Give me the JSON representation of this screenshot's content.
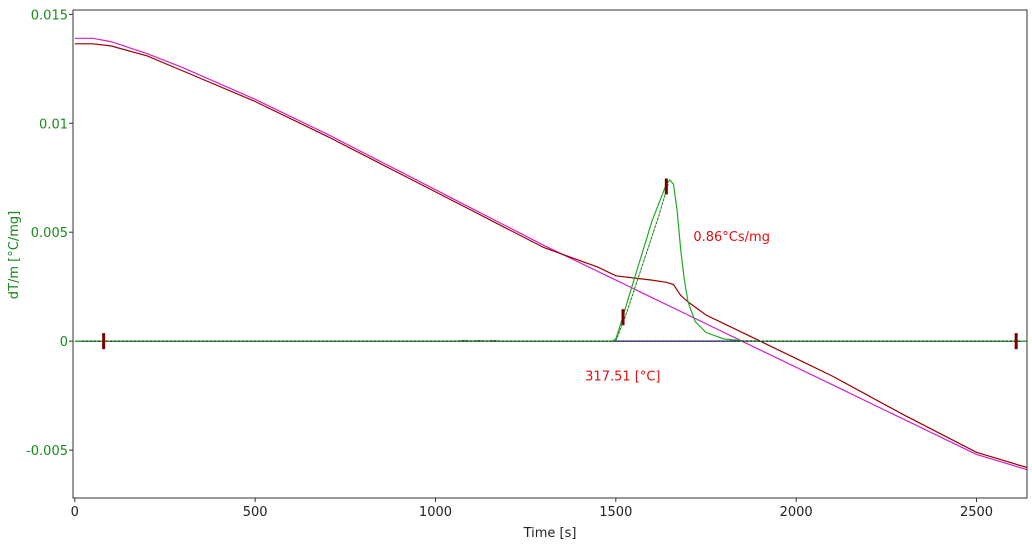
{
  "chart_data": {
    "type": "line",
    "xlabel": "Time [s]",
    "ylabel": "dT/m  [°C/mg]",
    "xlim": [
      -5,
      2640
    ],
    "ylim": [
      -0.0072,
      0.0152
    ],
    "xticks": [
      0,
      500,
      1000,
      1500,
      2000,
      2500
    ],
    "xtick_labels": [
      "0",
      "500",
      "1000",
      "1500",
      "2000",
      "2500"
    ],
    "yticks": [
      0.015,
      0.01,
      0.005,
      0,
      -0.005
    ],
    "ytick_labels": [
      "0.015",
      "0.01",
      "0.005",
      "0",
      "-0.005"
    ],
    "grid": false,
    "legend": "none",
    "colors": {
      "magenta_curve": "#d020d0",
      "darkred_curve": "#9a0000",
      "green_curve": "#22aa22",
      "baseline": "#1a1a8c",
      "dashed_overlay": "#1a1a1a",
      "markers": "#7a0000",
      "axis_text": "#1a8a1a",
      "annotation": "#e01010"
    },
    "series": [
      {
        "x": [
          0,
          50,
          100,
          200,
          300,
          500,
          700,
          900,
          1100,
          1300,
          1500,
          1600,
          1700,
          1900,
          2100,
          2300,
          2500,
          2640
        ],
        "y": [
          0.0139,
          0.0139,
          0.01375,
          0.0132,
          0.01255,
          0.0111,
          0.0095,
          0.0078,
          0.0061,
          0.0044,
          0.0028,
          0.002,
          0.0012,
          -0.0004,
          -0.002,
          -0.0036,
          -0.0052,
          -0.0059
        ]
      },
      {
        "x": [
          0,
          50,
          100,
          200,
          300,
          500,
          700,
          900,
          1100,
          1300,
          1450,
          1500,
          1550,
          1600,
          1640,
          1660,
          1680,
          1700,
          1750,
          1800,
          1900,
          2000,
          2100,
          2300,
          2500,
          2640
        ],
        "y": [
          0.01365,
          0.01365,
          0.01355,
          0.0131,
          0.0124,
          0.011,
          0.0094,
          0.0077,
          0.006,
          0.0043,
          0.0034,
          0.003,
          0.0029,
          0.0028,
          0.0027,
          0.0026,
          0.0021,
          0.0018,
          0.0012,
          0.0008,
          0,
          -0.0008,
          -0.0016,
          -0.0034,
          -0.0051,
          -0.0058
        ]
      },
      {
        "x": [
          0,
          1060,
          1080,
          1100,
          1120,
          1140,
          1160,
          1180,
          1200,
          1490,
          1500,
          1510,
          1550,
          1600,
          1640,
          1650,
          1660,
          1670,
          1680,
          1690,
          1700,
          1720,
          1750,
          1800,
          1850,
          1900,
          2270,
          2640
        ],
        "y": [
          0,
          0,
          4e-05,
          0,
          3e-05,
          0,
          3e-05,
          0,
          0,
          0,
          0.0001,
          0.0006,
          0.0028,
          0.0055,
          0.0072,
          0.0074,
          0.0072,
          0.006,
          0.0042,
          0.0028,
          0.0018,
          0.0009,
          0.0004,
          0.0001,
          2e-05,
          0,
          0,
          0
        ]
      },
      {
        "x": [
          0,
          2640
        ],
        "y": [
          0,
          0
        ]
      }
    ],
    "overlay_segments": [
      {
        "x": [
          20,
          2620
        ],
        "y": [
          0,
          0
        ]
      },
      {
        "x": [
          1500,
          1530,
          1560,
          1590,
          1620,
          1645
        ],
        "y": [
          0,
          0.0013,
          0.0028,
          0.0043,
          0.0058,
          0.0072
        ]
      }
    ],
    "markers": [
      {
        "x": 80,
        "y": 0
      },
      {
        "x": 1520,
        "y": 0.0011
      },
      {
        "x": 1640,
        "y": 0.0071
      },
      {
        "x": 2610,
        "y": 0
      }
    ],
    "annotations": [
      {
        "text": "0.86°Cs/mg",
        "x": 1715,
        "y": 0.0046
      },
      {
        "text": "317.51 [°C]",
        "x": 1415,
        "y": -0.0018
      }
    ]
  }
}
